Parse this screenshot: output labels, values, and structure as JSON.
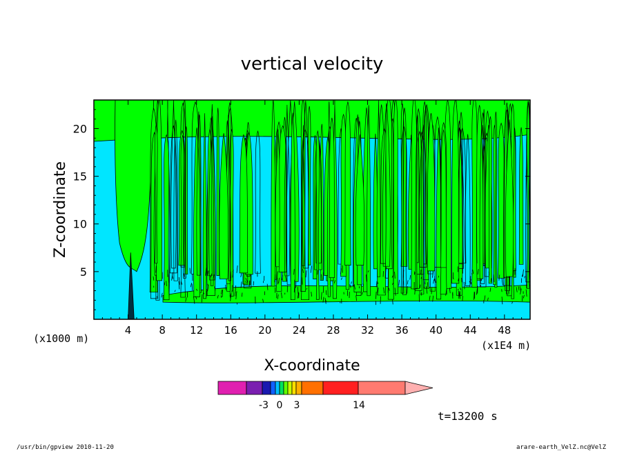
{
  "chart_data": {
    "type": "heatmap",
    "title": "vertical velocity",
    "xlabel": "X-coordinate",
    "ylabel": "Z-coordinate",
    "xunit_left": "(x1000 m)",
    "xunit_right": "(x1E4 m)",
    "xlim": [
      0,
      51
    ],
    "ylim": [
      0,
      23
    ],
    "xticks": [
      "4",
      "8",
      "12",
      "16",
      "20",
      "24",
      "28",
      "32",
      "36",
      "40",
      "44",
      "48"
    ],
    "yticks": [
      "5",
      "10",
      "15",
      "20"
    ],
    "colorbar": {
      "labels": [
        "-3",
        "0",
        "3",
        "14"
      ],
      "colors": [
        "#e020b0",
        "#7a1fb0",
        "#1a1ab0",
        "#1060ff",
        "#00c0ff",
        "#00e060",
        "#60ff00",
        "#c8ff00",
        "#ffe000",
        "#ffb000",
        "#ff7000",
        "#ff2020",
        "#ff7a70",
        "#ffb0b0"
      ],
      "extend": "max"
    },
    "field_colors": {
      "negative": "#00e6ff",
      "positive": "#00ff00"
    },
    "time_label": "t=13200 s"
  },
  "footer": {
    "left": "/usr/bin/gpview   2010-11-20",
    "right": "arare-earth_VelZ.nc@VelZ"
  }
}
